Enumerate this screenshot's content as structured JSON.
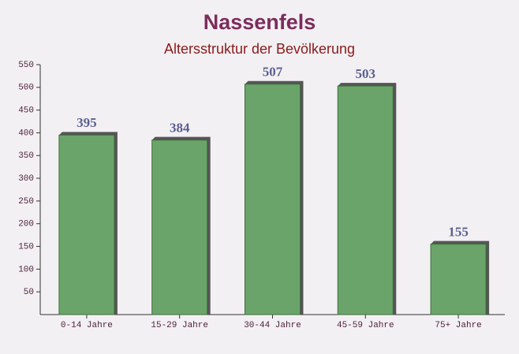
{
  "chart_data": {
    "type": "bar",
    "title": "Nassenfels",
    "subtitle": "Altersstruktur der Bevölkerung",
    "categories": [
      "0-14 Jahre",
      "15-29 Jahre",
      "30-44 Jahre",
      "45-59 Jahre",
      "75+ Jahre"
    ],
    "values": [
      395,
      384,
      507,
      503,
      155
    ],
    "color": "#6ba46a",
    "ylim": [
      0,
      550
    ],
    "yticks": [
      50,
      100,
      150,
      200,
      250,
      300,
      350,
      400,
      450,
      500,
      550
    ]
  }
}
